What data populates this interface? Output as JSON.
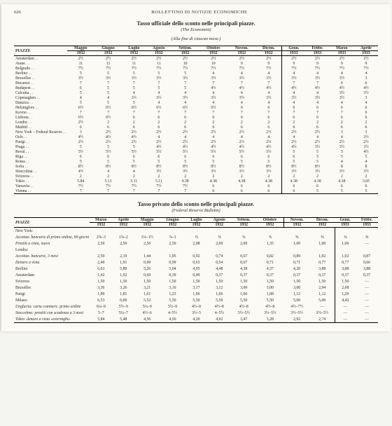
{
  "page_number": "626",
  "running_head": "BOLLETTINO DI NOTIZIE ECONOMICHE",
  "table1": {
    "title": "Tasso ufficiale dello sconto nelle principali piazze.",
    "source": "(The Economist)",
    "note": "(Alla fine di ciascun mese.)",
    "row_label": "PIAZZE",
    "months": [
      "Maggio",
      "Giugno",
      "Luglio",
      "Agosto",
      "Settem.",
      "Ottobre",
      "Novem.",
      "Dicem.",
      "Genn.",
      "Febbr.",
      "Marzo",
      "Aprile"
    ],
    "years": [
      "1932",
      "1932",
      "1932",
      "1932",
      "1932",
      "1932",
      "1932",
      "1932",
      "1933",
      "1933",
      "1933",
      "1933"
    ],
    "cities": [
      "Amsterdam",
      "Atene",
      "Belgrado",
      "Berlino",
      "Bruxelles",
      "Bucarest",
      "Budapest",
      "Calcutta",
      "Copenaghen",
      "Danzica",
      "Helsingfors",
      "Kovno",
      "Lisbona",
      "Londra",
      "Madrid",
      "New York – Federal Reserve",
      "Oslo",
      "Parigi",
      "Praga",
      "Reval",
      "Riga",
      "Roma",
      "Sofia",
      "Stoccolma",
      "Svizzera",
      "Tokio",
      "Varsavia",
      "Vienna"
    ],
    "values": [
      [
        "2½",
        "2½",
        "2½",
        "2½",
        "2½",
        "2½",
        "2½",
        "2½",
        "2½",
        "2½",
        "2½",
        "2½"
      ],
      [
        "11",
        "11",
        "11",
        "11",
        "10",
        "10",
        "9",
        "9",
        "9",
        "9",
        "9",
        "9"
      ],
      [
        "7½",
        "7½",
        "7½",
        "7½",
        "7½",
        "7½",
        "7½",
        "7½",
        "7½",
        "7½",
        "7½",
        "7½"
      ],
      [
        "5",
        "5",
        "5",
        "5",
        "5",
        "4",
        "4",
        "4",
        "4",
        "4",
        "4",
        "4"
      ],
      [
        "3½",
        "3½",
        "3½",
        "3½",
        "3½",
        "3½",
        "3½",
        "3½",
        "3½",
        "3½",
        "3½",
        "3"
      ],
      [
        "7",
        "7",
        "7",
        "7",
        "7",
        "7",
        "7",
        "7",
        "7",
        "7",
        "6",
        "6"
      ],
      [
        "6",
        "5",
        "5",
        "5",
        "5",
        "4½",
        "4½",
        "4½",
        "4½",
        "4½",
        "4½",
        "4½"
      ],
      [
        "5",
        "5",
        "4",
        "4",
        "4",
        "4",
        "4",
        "4",
        "4",
        "4",
        "3½",
        "3½"
      ],
      [
        "4",
        "4",
        "3½",
        "3½",
        "3½",
        "3½",
        "3½",
        "3½",
        "3½",
        "3½",
        "3½",
        "3"
      ],
      [
        "5",
        "5",
        "5",
        "4",
        "4",
        "4",
        "4",
        "4",
        "4",
        "4",
        "4",
        "4"
      ],
      [
        "6½",
        "6½",
        "6½",
        "6½",
        "6½",
        "6½",
        "6",
        "6",
        "6",
        "6",
        "6",
        "6"
      ],
      [
        "7",
        "7",
        "7",
        "7",
        "7",
        "7",
        "7",
        "7",
        "7",
        "7",
        "7",
        "6"
      ],
      [
        "6½",
        "6½",
        "6",
        "6",
        "6",
        "6",
        "6",
        "6",
        "6",
        "6",
        "6",
        "6"
      ],
      [
        "2½",
        "2",
        "2",
        "2",
        "2",
        "2",
        "2",
        "2",
        "2",
        "2",
        "2",
        "2"
      ],
      [
        "6",
        "6",
        "6",
        "6",
        "6",
        "6",
        "6",
        "6",
        "6",
        "6",
        "6",
        "6"
      ],
      [
        "3",
        "2½",
        "2½",
        "2½",
        "2½",
        "2½",
        "2½",
        "2½",
        "2½",
        "2½",
        "3",
        "3"
      ],
      [
        "4½",
        "4½",
        "4½",
        "4",
        "4",
        "4",
        "4",
        "4",
        "4",
        "4",
        "4",
        "3½"
      ],
      [
        "2½",
        "2½",
        "2½",
        "2½",
        "2½",
        "2½",
        "2½",
        "2½",
        "2½",
        "2½",
        "2½",
        "2½"
      ],
      [
        "5",
        "5",
        "5",
        "4½",
        "4½",
        "4½",
        "4½",
        "4½",
        "4½",
        "3½",
        "3½",
        "3½"
      ],
      [
        "5½",
        "5½",
        "5½",
        "5½",
        "5½",
        "5½",
        "5½",
        "5½",
        "5",
        "5",
        "5",
        "4½"
      ],
      [
        "6",
        "6",
        "6",
        "6",
        "6",
        "6",
        "6",
        "6",
        "6",
        "5",
        "5",
        "5"
      ],
      [
        "5",
        "5",
        "5",
        "5",
        "5",
        "5",
        "5",
        "5",
        "5",
        "5",
        "4",
        "4"
      ],
      [
        "8½",
        "8½",
        "8½",
        "8½",
        "8½",
        "8½",
        "8½",
        "8½",
        "8½",
        "8½",
        "8",
        "8"
      ],
      [
        "4½",
        "4",
        "4",
        "3½",
        "3½",
        "3½",
        "3½",
        "3½",
        "3½",
        "3½",
        "3½",
        "3½"
      ],
      [
        "2",
        "2",
        "2",
        "2",
        "2",
        "2",
        "2",
        "2",
        "2",
        "2",
        "2",
        "2"
      ],
      [
        "5.84",
        "5.11",
        "5.11",
        "5.11",
        "4.38",
        "4.38",
        "4.38",
        "4.38",
        "4.38",
        "4.38",
        "4.38",
        "3.65"
      ],
      [
        "7½",
        "7½",
        "7½",
        "7½",
        "7½",
        "6",
        "6",
        "6",
        "6",
        "6",
        "6",
        "6"
      ],
      [
        "7",
        "7",
        "7",
        "7",
        "7",
        "6",
        "6",
        "6",
        "6",
        "5",
        "5",
        "5"
      ]
    ]
  },
  "table2": {
    "title": "Tasso privato dello sconto nelle principali piazze.",
    "source": "(Federal Reserve Bulletin)",
    "row_label": "PIAZZE",
    "months": [
      "Marzo",
      "Aprile",
      "Maggio",
      "Giugno",
      "Luglio",
      "Agosto",
      "Settem.",
      "Ottobre",
      "Novem.",
      "Dicem.",
      "Genn.",
      "Febbr."
    ],
    "years": [
      "1932",
      "1932",
      "1932",
      "1932",
      "1932",
      "1932",
      "1932",
      "1932",
      "1932",
      "1932",
      "1933",
      "1933"
    ],
    "rows": [
      {
        "label": "New York:",
        "city": true,
        "vals": [
          "",
          "",
          "",
          "",
          "",
          "",
          "",
          "",
          "",
          "",
          "",
          ""
        ]
      },
      {
        "label": "Accettaz. bancarie di primo ordine, 90 giorni",
        "vals": [
          "2⅞–3",
          "1⅞–2",
          "1¼–1½",
          "⅞–1",
          "⅞",
          "⅞",
          "⅞",
          "⅞",
          "⅝",
          "⅝",
          "⅜",
          "⅜"
        ]
      },
      {
        "label": "Prestiti a vista, nuovi",
        "vals": [
          "2,50",
          "2,50",
          "2,50",
          "2,50",
          "2,08",
          "2,00",
          "2,00",
          "1,35",
          "1,00",
          "1,00",
          "1,00",
          "—"
        ]
      },
      {
        "label": "Londra:",
        "city": true,
        "vals": [
          "",
          "",
          "",
          "",
          "",
          "",
          "",
          "",
          "",
          "",
          "",
          ""
        ]
      },
      {
        "label": "Accettaz. bancarie, 3 mesi",
        "vals": [
          "2,59",
          "2,19",
          "1,44",
          "1,05",
          "0,92",
          "0,74",
          "0,67",
          "0,82",
          "0,89",
          "1,02",
          "1,02",
          "0,87"
        ]
      },
      {
        "label": "Denaro a vista",
        "vals": [
          "2,40",
          "1,91",
          "0,99",
          "0,99",
          "0,63",
          "0,54",
          "0,67",
          "0,71",
          "0,71",
          "0,77",
          "0,77",
          "0,66"
        ]
      },
      {
        "label": "Berlino",
        "city": true,
        "vals": [
          "6,63",
          "5,89",
          "5,26",
          "5,04",
          "4,95",
          "4,48",
          "4,38",
          "4,37",
          "4,20",
          "3,88",
          "3,88",
          "3,88"
        ]
      },
      {
        "label": "Amsterdam",
        "city": true,
        "vals": [
          "1,42",
          "1,02",
          "0,60",
          "0,39",
          "0,49",
          "0,37",
          "0,37",
          "0,37",
          "0,37",
          "0,37",
          "0,37",
          "0,37"
        ]
      },
      {
        "label": "Svizzera",
        "city": true,
        "vals": [
          "1,50",
          "1,50",
          "1,50",
          "1,50",
          "1,50",
          "1,50",
          "1,50",
          "1,50",
          "1,50",
          "1,50",
          "1,50",
          "—"
        ]
      },
      {
        "label": "Bruxelles",
        "city": true,
        "vals": [
          "3,36",
          "3,26",
          "3,21",
          "3,16",
          "3,17",
          "3,12",
          "3,00",
          "3,00",
          "3,00",
          "2,94",
          "2,68",
          "—"
        ]
      },
      {
        "label": "Parigi",
        "city": true,
        "vals": [
          "1,89",
          "1,81",
          "1,61",
          "1,23",
          "1,06",
          "1,06",
          "1,06",
          "1,08",
          "1,12",
          "1,12",
          "1,29",
          "—"
        ]
      },
      {
        "label": "Milano",
        "city": true,
        "vals": [
          "6,53",
          "6,00",
          "5,52",
          "5,50",
          "5,50",
          "5,50",
          "5,50",
          "5,50",
          "5,00",
          "5,00",
          "4,42",
          "—"
        ]
      },
      {
        "label": "Ungheria: carta commerc. primo ordine",
        "vals": [
          "6¼–9",
          "5½–9",
          "5¼–9",
          "5½–9",
          "4½–8",
          "4½–8",
          "4½–8",
          "4½–8",
          "4½–7½",
          "—",
          "—",
          "—"
        ]
      },
      {
        "label": "Stoccolma: prestiti con scadenza a 3 mesi",
        "vals": [
          "5–7",
          "5¼–7",
          "4½–6",
          "4–5½",
          "3½–5",
          "4–5½",
          "3½–5½",
          "3½–5½",
          "3½–5½",
          "3½–5½",
          "—",
          "—"
        ]
      },
      {
        "label": "Tokio: denaro a vista «overnight»",
        "vals": [
          "5,84",
          "5,48",
          "4,56",
          "4,56",
          "4,20",
          "4,02",
          "3,47",
          "3,28",
          "2,92",
          "2,74",
          "—",
          "—"
        ]
      }
    ]
  }
}
